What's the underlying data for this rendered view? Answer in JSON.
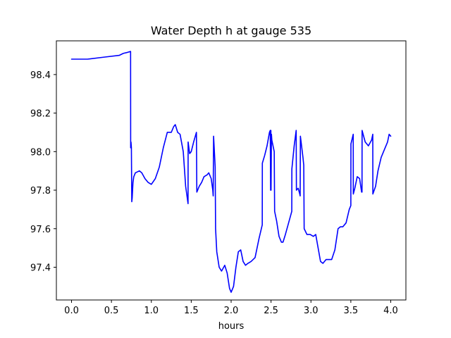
{
  "chart_data": {
    "type": "line",
    "title": "Water Depth h at gauge 535",
    "xlabel": "hours",
    "ylabel": "",
    "xlim": [
      -0.19,
      4.19
    ],
    "ylim": [
      97.23,
      98.575
    ],
    "xticks": [
      0.0,
      0.5,
      1.0,
      1.5,
      2.0,
      2.5,
      3.0,
      3.5,
      4.0
    ],
    "xtick_labels": [
      "0.0",
      "0.5",
      "1.0",
      "1.5",
      "2.0",
      "2.5",
      "3.0",
      "3.5",
      "4.0"
    ],
    "yticks": [
      97.4,
      97.6,
      97.8,
      98.0,
      98.2,
      98.4
    ],
    "ytick_labels": [
      "97.4",
      "97.6",
      "97.8",
      "98.0",
      "98.2",
      "98.4"
    ],
    "grid": false,
    "series": [
      {
        "color": "#0000ff",
        "x": [
          0.0,
          0.2,
          0.4,
          0.6,
          0.65,
          0.7,
          0.74,
          0.741,
          0.745,
          0.75,
          0.755,
          0.76,
          0.77,
          0.78,
          0.8,
          0.85,
          0.88,
          0.92,
          0.96,
          1.0,
          1.05,
          1.1,
          1.15,
          1.2,
          1.25,
          1.28,
          1.3,
          1.33,
          1.36,
          1.4,
          1.43,
          1.46,
          1.461,
          1.48,
          1.5,
          1.53,
          1.565,
          1.57,
          1.6,
          1.63,
          1.66,
          1.7,
          1.72,
          1.75,
          1.77,
          1.775,
          1.78,
          1.8,
          1.805,
          1.82,
          1.85,
          1.88,
          1.92,
          1.95,
          1.98,
          2.0,
          2.03,
          2.06,
          2.09,
          2.12,
          2.15,
          2.18,
          2.21,
          2.25,
          2.3,
          2.35,
          2.39,
          2.391,
          2.42,
          2.45,
          2.48,
          2.49,
          2.495,
          2.498,
          2.5,
          2.505,
          2.51,
          2.54,
          2.545,
          2.57,
          2.6,
          2.63,
          2.65,
          2.68,
          2.72,
          2.76,
          2.761,
          2.79,
          2.815,
          2.818,
          2.84,
          2.86,
          2.865,
          2.868,
          2.9,
          2.91,
          2.915,
          2.95,
          2.99,
          3.03,
          3.06,
          3.09,
          3.12,
          3.15,
          3.19,
          3.22,
          3.26,
          3.3,
          3.34,
          3.37,
          3.4,
          3.44,
          3.48,
          3.5,
          3.501,
          3.53,
          3.531,
          3.55,
          3.58,
          3.61,
          3.635,
          3.64,
          3.641,
          3.68,
          3.72,
          3.76,
          3.775,
          3.776,
          3.81,
          3.84,
          3.88,
          3.92,
          3.96,
          3.98,
          4.0
        ],
        "y": [
          98.48,
          98.48,
          98.49,
          98.5,
          98.51,
          98.515,
          98.52,
          98.02,
          98.05,
          98.02,
          97.74,
          97.76,
          97.84,
          97.87,
          97.89,
          97.9,
          97.89,
          97.86,
          97.84,
          97.83,
          97.86,
          97.92,
          98.02,
          98.1,
          98.1,
          98.13,
          98.14,
          98.1,
          98.09,
          98.0,
          97.82,
          97.73,
          98.05,
          97.99,
          98.0,
          98.05,
          98.1,
          97.79,
          97.82,
          97.84,
          97.87,
          97.88,
          97.89,
          97.86,
          97.8,
          97.77,
          98.08,
          97.92,
          97.6,
          97.48,
          97.4,
          97.38,
          97.41,
          97.37,
          97.29,
          97.27,
          97.3,
          97.4,
          97.48,
          97.49,
          97.43,
          97.41,
          97.42,
          97.43,
          97.45,
          97.55,
          97.62,
          97.94,
          97.98,
          98.03,
          98.1,
          98.11,
          97.8,
          98.11,
          97.8,
          98.09,
          98.06,
          98.0,
          97.69,
          97.64,
          97.56,
          97.53,
          97.53,
          97.57,
          97.63,
          97.69,
          97.91,
          98.03,
          98.11,
          97.8,
          97.81,
          97.78,
          97.77,
          98.08,
          97.97,
          97.93,
          97.6,
          97.57,
          97.57,
          97.56,
          97.57,
          97.5,
          97.43,
          97.42,
          97.44,
          97.44,
          97.44,
          97.49,
          97.6,
          97.61,
          97.61,
          97.63,
          97.7,
          97.72,
          98.04,
          98.09,
          97.78,
          97.81,
          97.87,
          97.86,
          97.79,
          97.79,
          98.11,
          98.05,
          98.03,
          98.06,
          98.09,
          97.78,
          97.82,
          97.9,
          97.97,
          98.01,
          98.05,
          98.09,
          98.08
        ]
      }
    ]
  }
}
